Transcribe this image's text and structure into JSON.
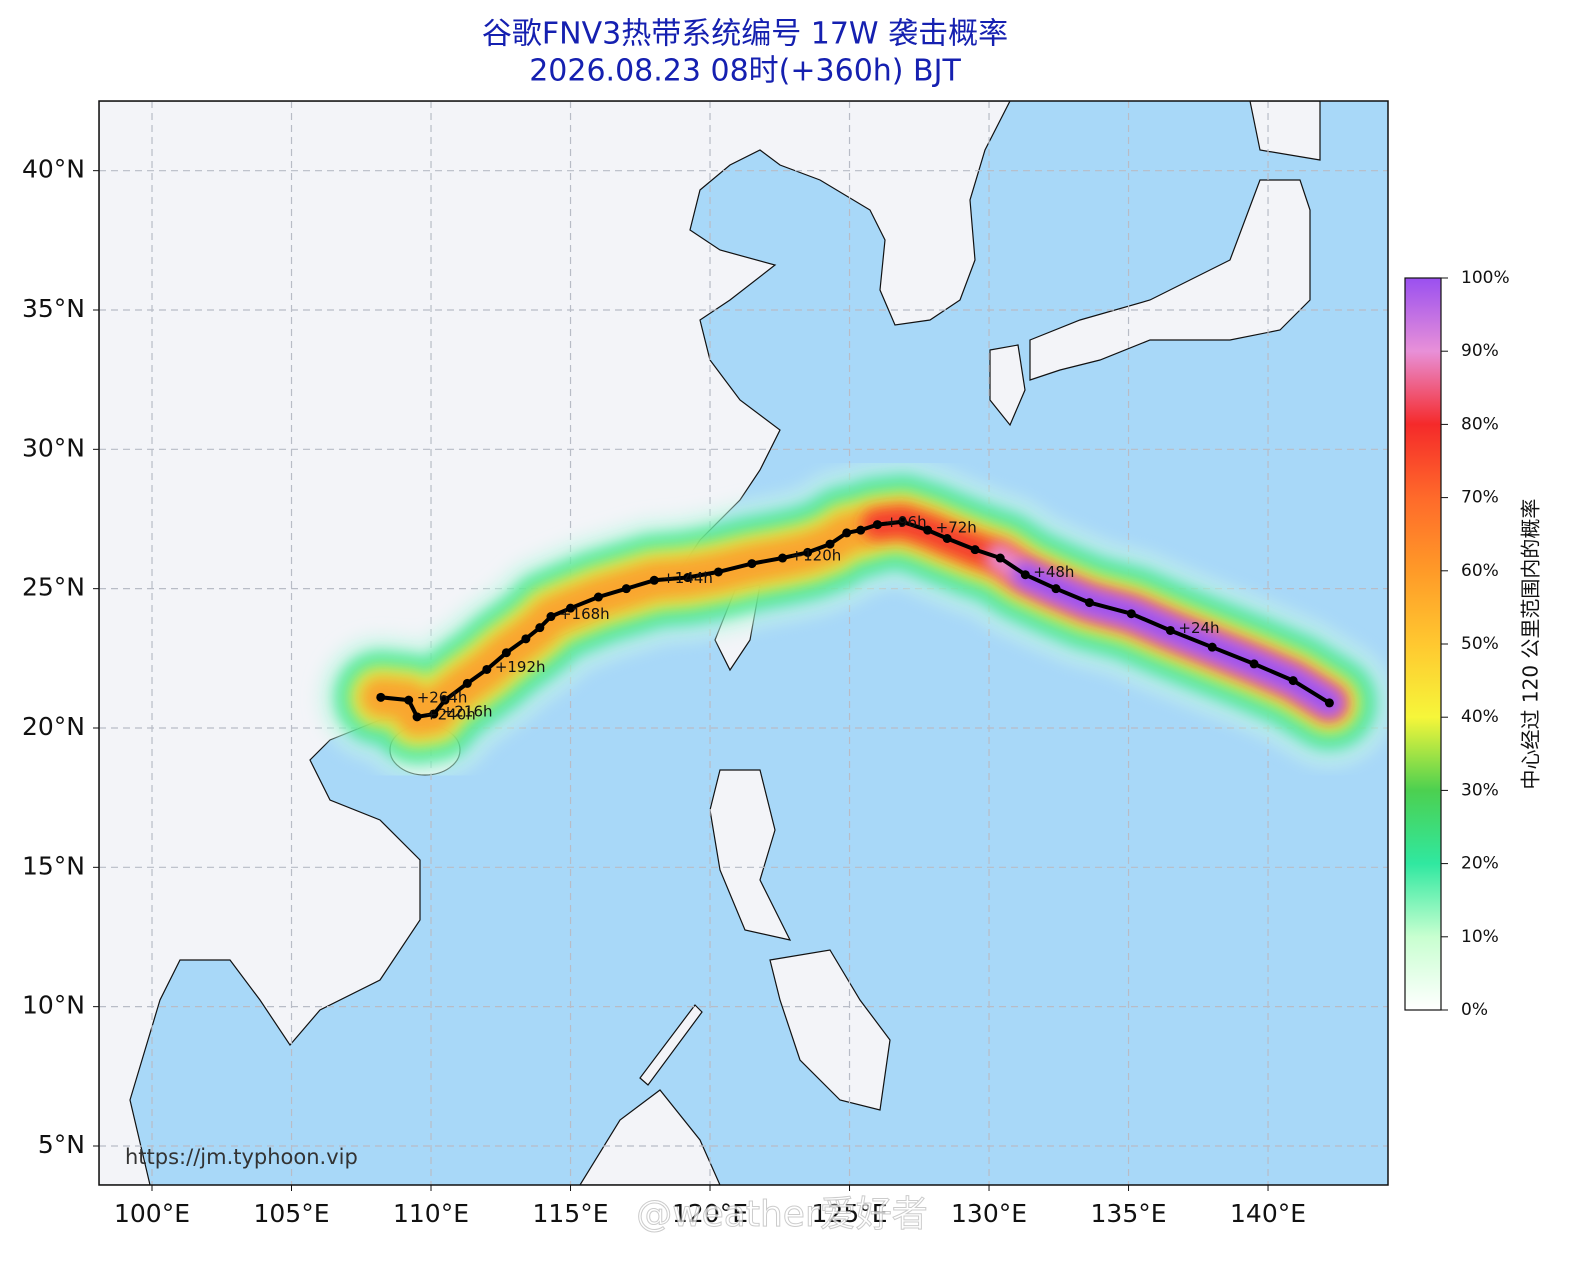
{
  "map": {
    "title": "谷歌FNV3热带系统编号 17W 袭击概率",
    "subtitle": "2026.08.23 08时(+360h) BJT",
    "xlim": [
      98.1,
      144.3
    ],
    "ylim": [
      3.6,
      42.5
    ],
    "xticks": [
      {
        "value": 100,
        "label": "100°E"
      },
      {
        "value": 105,
        "label": "105°E"
      },
      {
        "value": 110,
        "label": "110°E"
      },
      {
        "value": 115,
        "label": "115°E"
      },
      {
        "value": 120,
        "label": "120°E"
      },
      {
        "value": 125,
        "label": "125°E"
      },
      {
        "value": 130,
        "label": "130°E"
      },
      {
        "value": 135,
        "label": "135°E"
      },
      {
        "value": 140,
        "label": "140°E"
      }
    ],
    "yticks": [
      {
        "value": 5,
        "label": "5°N"
      },
      {
        "value": 10,
        "label": "10°N"
      },
      {
        "value": 15,
        "label": "15°N"
      },
      {
        "value": 20,
        "label": "20°N"
      },
      {
        "value": 25,
        "label": "25°N"
      },
      {
        "value": 30,
        "label": "30°N"
      },
      {
        "value": 35,
        "label": "35°N"
      },
      {
        "value": 40,
        "label": "40°N"
      }
    ],
    "grid": true,
    "track": [
      {
        "lon": 142.2,
        "lat": 20.9
      },
      {
        "lon": 140.9,
        "lat": 21.7
      },
      {
        "lon": 139.5,
        "lat": 22.3
      },
      {
        "lon": 138.0,
        "lat": 22.9
      },
      {
        "lon": 136.5,
        "lat": 23.5,
        "label": "+24h"
      },
      {
        "lon": 135.1,
        "lat": 24.1
      },
      {
        "lon": 133.6,
        "lat": 24.5
      },
      {
        "lon": 132.4,
        "lat": 25.0
      },
      {
        "lon": 131.3,
        "lat": 25.5,
        "label": "+48h"
      },
      {
        "lon": 130.4,
        "lat": 26.1
      },
      {
        "lon": 129.5,
        "lat": 26.4
      },
      {
        "lon": 128.5,
        "lat": 26.8
      },
      {
        "lon": 127.8,
        "lat": 27.1,
        "label": "+72h"
      },
      {
        "lon": 126.9,
        "lat": 27.4
      },
      {
        "lon": 126.0,
        "lat": 27.3,
        "label": "+96h"
      },
      {
        "lon": 125.4,
        "lat": 27.1
      },
      {
        "lon": 124.9,
        "lat": 27.0
      },
      {
        "lon": 124.3,
        "lat": 26.6
      },
      {
        "lon": 123.5,
        "lat": 26.3
      },
      {
        "lon": 122.6,
        "lat": 26.1,
        "label": "+120h"
      },
      {
        "lon": 121.5,
        "lat": 25.9
      },
      {
        "lon": 120.3,
        "lat": 25.6
      },
      {
        "lon": 119.2,
        "lat": 25.4
      },
      {
        "lon": 118.0,
        "lat": 25.3,
        "label": "+144h"
      },
      {
        "lon": 117.0,
        "lat": 25.0
      },
      {
        "lon": 116.0,
        "lat": 24.7
      },
      {
        "lon": 115.0,
        "lat": 24.3
      },
      {
        "lon": 114.3,
        "lat": 24.0,
        "label": "+168h"
      },
      {
        "lon": 113.9,
        "lat": 23.6
      },
      {
        "lon": 113.4,
        "lat": 23.2
      },
      {
        "lon": 112.7,
        "lat": 22.7
      },
      {
        "lon": 112.0,
        "lat": 22.1,
        "label": "+192h"
      },
      {
        "lon": 111.3,
        "lat": 21.6
      },
      {
        "lon": 110.5,
        "lat": 21.0
      },
      {
        "lon": 110.1,
        "lat": 20.5,
        "label": "+216h"
      },
      {
        "lon": 109.5,
        "lat": 20.4,
        "label": "+240h"
      },
      {
        "lon": 109.2,
        "lat": 21.0,
        "label": "+264h"
      },
      {
        "lon": 108.2,
        "lat": 21.1
      }
    ],
    "colorbar": {
      "title": "中心经过 120 公里范围内的概率",
      "lim": [
        0,
        100
      ],
      "ticks": [
        {
          "value": 0,
          "label": "0%"
        },
        {
          "value": 10,
          "label": "10%"
        },
        {
          "value": 20,
          "label": "20%"
        },
        {
          "value": 30,
          "label": "30%"
        },
        {
          "value": 40,
          "label": "40%"
        },
        {
          "value": 50,
          "label": "50%"
        },
        {
          "value": 60,
          "label": "60%"
        },
        {
          "value": 70,
          "label": "70%"
        },
        {
          "value": 80,
          "label": "80%"
        },
        {
          "value": 90,
          "label": "90%"
        },
        {
          "value": 100,
          "label": "100%"
        }
      ]
    },
    "source": "https://jm.typhoon.vip",
    "watermark": "@weather爱好者"
  }
}
